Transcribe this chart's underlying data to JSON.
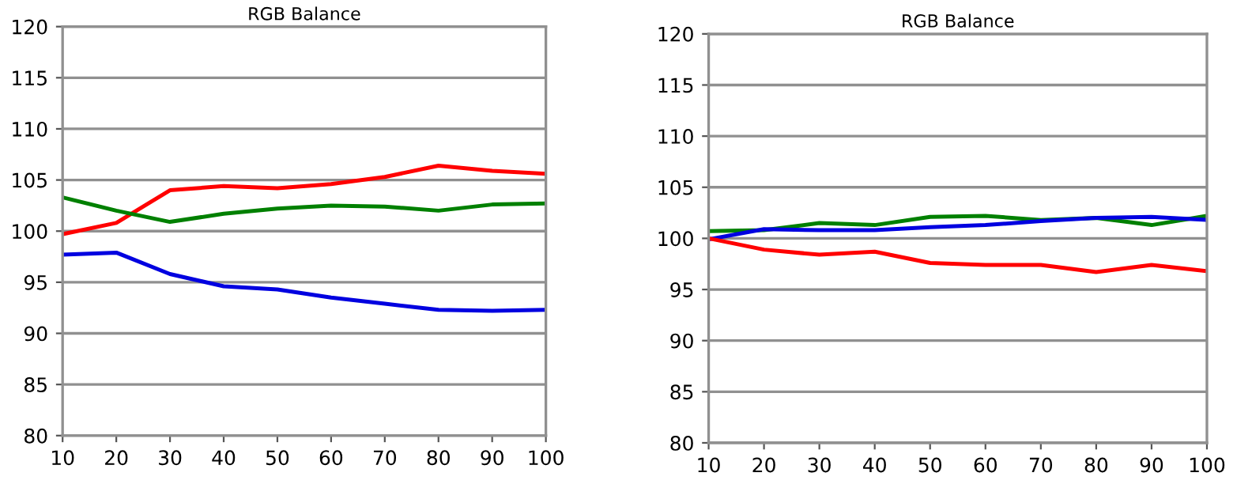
{
  "chart_data": [
    {
      "type": "line",
      "title": "RGB Balance",
      "x": [
        10,
        20,
        30,
        40,
        50,
        60,
        70,
        80,
        90,
        100
      ],
      "series": [
        {
          "color": "#ff0000",
          "values": [
            99.7,
            100.8,
            104.0,
            104.4,
            104.2,
            104.6,
            105.3,
            106.4,
            105.9,
            105.6
          ]
        },
        {
          "color": "#008000",
          "values": [
            103.3,
            102.0,
            100.9,
            101.7,
            102.2,
            102.5,
            102.4,
            102.0,
            102.6,
            102.7
          ]
        },
        {
          "color": "#0000e0",
          "values": [
            97.7,
            97.9,
            95.8,
            94.6,
            94.3,
            93.5,
            92.9,
            92.3,
            92.2,
            92.3
          ]
        }
      ],
      "xlim": [
        10,
        100
      ],
      "xticks": [
        10,
        20,
        30,
        40,
        50,
        60,
        70,
        80,
        90,
        100
      ],
      "ylim": [
        80,
        120
      ],
      "yticks": [
        80,
        85,
        90,
        95,
        100,
        105,
        110,
        115,
        120
      ],
      "grid": "y"
    },
    {
      "type": "line",
      "title": "RGB Balance",
      "x": [
        10,
        20,
        30,
        40,
        50,
        60,
        70,
        80,
        90,
        100
      ],
      "series": [
        {
          "color": "#008000",
          "values": [
            100.7,
            100.8,
            101.5,
            101.3,
            102.1,
            102.2,
            101.8,
            102.0,
            101.3,
            102.2
          ]
        },
        {
          "color": "#0000e0",
          "values": [
            99.9,
            100.9,
            100.8,
            100.8,
            101.1,
            101.3,
            101.7,
            102.0,
            102.1,
            101.8
          ]
        },
        {
          "color": "#ff0000",
          "values": [
            100.0,
            98.9,
            98.4,
            98.7,
            97.6,
            97.4,
            97.4,
            96.7,
            97.4,
            96.8
          ]
        }
      ],
      "xlim": [
        10,
        100
      ],
      "xticks": [
        10,
        20,
        30,
        40,
        50,
        60,
        70,
        80,
        90,
        100
      ],
      "ylim": [
        80,
        120
      ],
      "yticks": [
        80,
        85,
        90,
        95,
        100,
        105,
        110,
        115,
        120
      ],
      "grid": "y"
    }
  ]
}
